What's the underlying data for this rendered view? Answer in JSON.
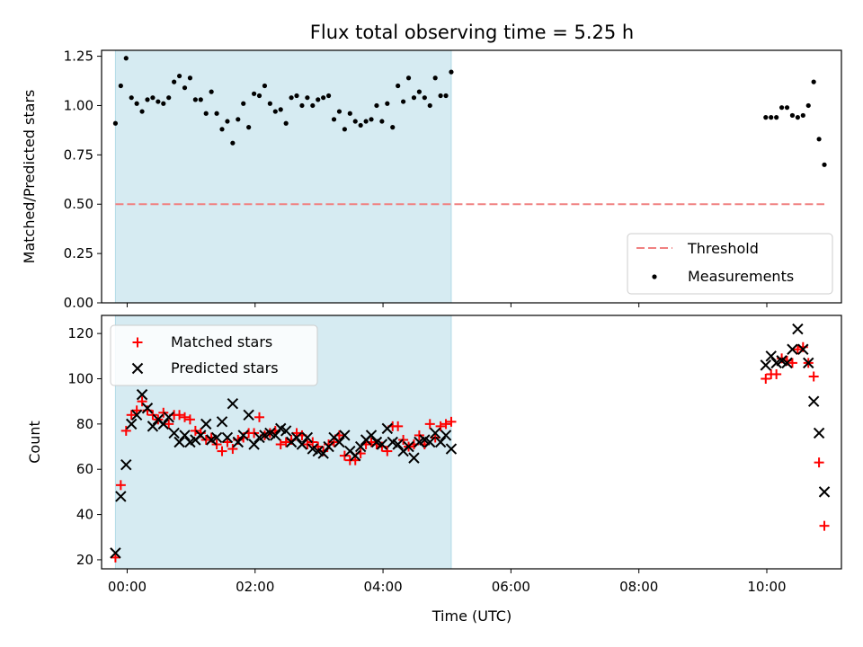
{
  "figure": {
    "title": "Flux total observing time = 5.25 h",
    "xlabel": "Time (UTC)"
  },
  "colors": {
    "shade": "#add8e6",
    "threshold": "#f08080",
    "matched": "#ff0000",
    "predicted": "#000000",
    "measurement": "#000000"
  },
  "chart_data": [
    {
      "type": "scatter",
      "panel": "top",
      "ylabel": "Matched/Predicted stars",
      "ylim": [
        0,
        1.28
      ],
      "xlim": [
        "23:36",
        "11:10"
      ],
      "xticks": [
        "00:00",
        "02:00",
        "04:00",
        "06:00",
        "08:00",
        "10:00"
      ],
      "yticks": [
        "0.00",
        "0.25",
        "0.50",
        "0.75",
        "1.00",
        "1.25"
      ],
      "shaded_span": [
        "23:49",
        "05:04"
      ],
      "legend": {
        "placement": "lower right",
        "entries": [
          "Threshold",
          "Measurements"
        ]
      },
      "threshold": {
        "name": "Threshold",
        "value": 0.5,
        "x": [
          "23:49",
          "10:54"
        ]
      },
      "series": [
        {
          "name": "Measurements",
          "x": [
            "23:49",
            "23:54",
            "23:59",
            "00:04",
            "00:09",
            "00:14",
            "00:19",
            "00:24",
            "00:29",
            "00:34",
            "00:39",
            "00:44",
            "00:49",
            "00:54",
            "00:59",
            "01:04",
            "01:09",
            "01:14",
            "01:19",
            "01:24",
            "01:29",
            "01:34",
            "01:39",
            "01:44",
            "01:49",
            "01:54",
            "01:59",
            "02:04",
            "02:09",
            "02:14",
            "02:19",
            "02:24",
            "02:29",
            "02:34",
            "02:39",
            "02:44",
            "02:49",
            "02:54",
            "02:59",
            "03:04",
            "03:09",
            "03:14",
            "03:19",
            "03:24",
            "03:29",
            "03:34",
            "03:39",
            "03:44",
            "03:49",
            "03:54",
            "03:59",
            "04:04",
            "04:09",
            "04:14",
            "04:19",
            "04:24",
            "04:29",
            "04:34",
            "04:39",
            "04:44",
            "04:49",
            "04:54",
            "04:59",
            "05:04",
            "09:59",
            "10:04",
            "10:09",
            "10:14",
            "10:19",
            "10:24",
            "10:29",
            "10:34",
            "10:39",
            "10:44",
            "10:49",
            "10:54"
          ],
          "y": [
            0.91,
            1.1,
            1.24,
            1.04,
            1.01,
            0.97,
            1.03,
            1.04,
            1.02,
            1.01,
            1.04,
            1.12,
            1.15,
            1.09,
            1.14,
            1.03,
            1.03,
            0.96,
            1.07,
            0.96,
            0.88,
            0.92,
            0.81,
            0.93,
            1.01,
            0.89,
            1.06,
            1.05,
            1.1,
            1.01,
            0.97,
            0.98,
            0.91,
            1.04,
            1.05,
            1.0,
            1.04,
            1.0,
            1.03,
            1.04,
            1.05,
            0.93,
            0.97,
            0.88,
            0.96,
            0.92,
            0.9,
            0.92,
            0.93,
            1.0,
            0.92,
            1.01,
            0.89,
            1.1,
            1.02,
            1.14,
            1.04,
            1.07,
            1.04,
            1.0,
            1.14,
            1.05,
            1.05,
            1.17,
            0.94,
            0.94,
            0.94,
            0.99,
            0.99,
            0.95,
            0.94,
            0.95,
            1.0,
            1.12,
            0.83,
            0.7
          ]
        }
      ]
    },
    {
      "type": "scatter",
      "panel": "bottom",
      "ylabel": "Count",
      "ylim": [
        16,
        128
      ],
      "xlim": [
        "23:36",
        "11:10"
      ],
      "xticks": [
        "00:00",
        "02:00",
        "04:00",
        "06:00",
        "08:00",
        "10:00"
      ],
      "yticks": [
        "20",
        "40",
        "60",
        "80",
        "100",
        "120"
      ],
      "shaded_span": [
        "23:49",
        "05:04"
      ],
      "legend": {
        "placement": "upper left",
        "entries": [
          "Matched stars",
          "Predicted stars"
        ]
      },
      "series": [
        {
          "name": "Matched stars",
          "marker": "+",
          "x": [
            "23:49",
            "23:54",
            "23:59",
            "00:04",
            "00:09",
            "00:14",
            "00:19",
            "00:24",
            "00:29",
            "00:34",
            "00:39",
            "00:44",
            "00:49",
            "00:54",
            "00:59",
            "01:04",
            "01:09",
            "01:14",
            "01:19",
            "01:24",
            "01:29",
            "01:34",
            "01:39",
            "01:44",
            "01:49",
            "01:54",
            "01:59",
            "02:04",
            "02:09",
            "02:14",
            "02:19",
            "02:24",
            "02:29",
            "02:34",
            "02:39",
            "02:44",
            "02:49",
            "02:54",
            "02:59",
            "03:04",
            "03:09",
            "03:14",
            "03:19",
            "03:24",
            "03:29",
            "03:34",
            "03:39",
            "03:44",
            "03:49",
            "03:54",
            "03:59",
            "04:04",
            "04:09",
            "04:14",
            "04:19",
            "04:24",
            "04:29",
            "04:34",
            "04:39",
            "04:44",
            "04:49",
            "04:54",
            "04:59",
            "05:04",
            "09:59",
            "10:04",
            "10:09",
            "10:14",
            "10:19",
            "10:24",
            "10:29",
            "10:34",
            "10:39",
            "10:44",
            "10:49",
            "10:54"
          ],
          "y": [
            21,
            53,
            77,
            84,
            86,
            90,
            86,
            84,
            82,
            85,
            80,
            84,
            84,
            83,
            82,
            77,
            76,
            73,
            74,
            71,
            68,
            72,
            69,
            73,
            74,
            76,
            76,
            83,
            75,
            76,
            77,
            71,
            72,
            73,
            76,
            75,
            71,
            72,
            70,
            68,
            71,
            72,
            75,
            66,
            64,
            64,
            67,
            71,
            72,
            71,
            70,
            68,
            79,
            79,
            73,
            70,
            71,
            75,
            71,
            80,
            74,
            79,
            80,
            81,
            100,
            102,
            102,
            109,
            108,
            107,
            113,
            114,
            107,
            101,
            63,
            35
          ]
        },
        {
          "name": "Predicted stars",
          "marker": "x",
          "x": [
            "23:49",
            "23:54",
            "23:59",
            "00:04",
            "00:09",
            "00:14",
            "00:19",
            "00:24",
            "00:29",
            "00:34",
            "00:39",
            "00:44",
            "00:49",
            "00:54",
            "00:59",
            "01:04",
            "01:09",
            "01:14",
            "01:19",
            "01:24",
            "01:29",
            "01:34",
            "01:39",
            "01:44",
            "01:49",
            "01:54",
            "01:59",
            "02:04",
            "02:09",
            "02:14",
            "02:19",
            "02:24",
            "02:29",
            "02:34",
            "02:39",
            "02:44",
            "02:49",
            "02:54",
            "02:59",
            "03:04",
            "03:09",
            "03:14",
            "03:19",
            "03:24",
            "03:29",
            "03:34",
            "03:39",
            "03:44",
            "03:49",
            "03:54",
            "03:59",
            "04:04",
            "04:09",
            "04:14",
            "04:19",
            "04:24",
            "04:29",
            "04:34",
            "04:39",
            "04:44",
            "04:49",
            "04:54",
            "04:59",
            "05:04",
            "09:59",
            "10:04",
            "10:09",
            "10:14",
            "10:19",
            "10:24",
            "10:29",
            "10:34",
            "10:39",
            "10:44",
            "10:49",
            "10:54"
          ],
          "y": [
            23,
            48,
            62,
            80,
            84,
            93,
            87,
            79,
            82,
            80,
            83,
            76,
            72,
            75,
            72,
            73,
            75,
            80,
            73,
            74,
            81,
            74,
            89,
            72,
            75,
            84,
            71,
            74,
            75,
            76,
            75,
            78,
            77,
            72,
            74,
            71,
            74,
            69,
            68,
            67,
            70,
            74,
            72,
            75,
            68,
            66,
            70,
            73,
            75,
            72,
            71,
            78,
            72,
            71,
            68,
            70,
            65,
            72,
            73,
            72,
            76,
            72,
            75,
            69,
            106,
            110,
            107,
            108,
            107,
            113,
            122,
            113,
            107,
            90,
            76,
            50
          ]
        }
      ]
    }
  ]
}
